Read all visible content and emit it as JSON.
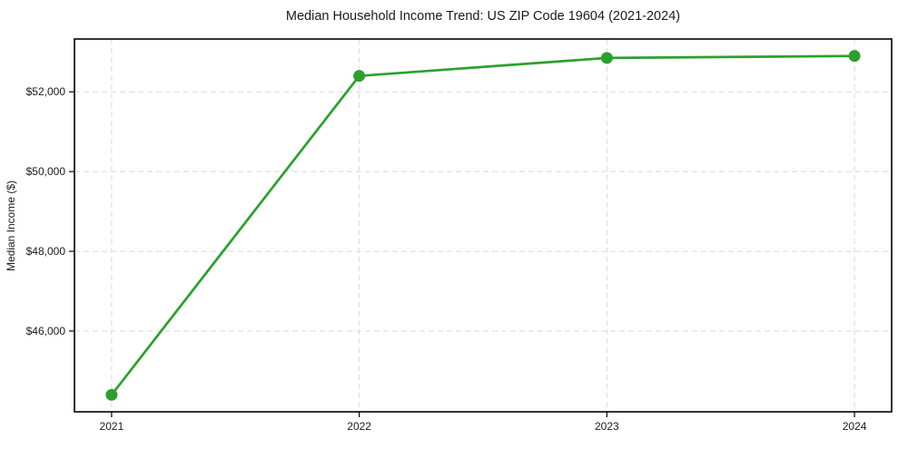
{
  "chart_data": {
    "type": "line",
    "title": "Median Household Income Trend: US ZIP Code 19604 (2021-2024)",
    "xlabel": "",
    "ylabel": "Median Income ($)",
    "x": [
      2021,
      2022,
      2023,
      2024
    ],
    "x_tick_labels": [
      "2021",
      "2022",
      "2023",
      "2024"
    ],
    "series": [
      {
        "name": "Median Household Income",
        "values": [
          44400,
          52400,
          52850,
          52900
        ]
      }
    ],
    "y_ticks": [
      46000,
      48000,
      50000,
      52000
    ],
    "y_tick_labels": [
      "$46,000",
      "$48,000",
      "$50,000",
      "$52,000"
    ],
    "xlim": [
      2020.85,
      2024.15
    ],
    "ylim": [
      43975,
      53325
    ],
    "grid": true,
    "grid_style": "dashed",
    "legend": "none",
    "line_color": "#2ca02c",
    "grid_color": "#d9d9d9",
    "text_color": "#1a1a1a",
    "background_color": "#ffffff"
  }
}
